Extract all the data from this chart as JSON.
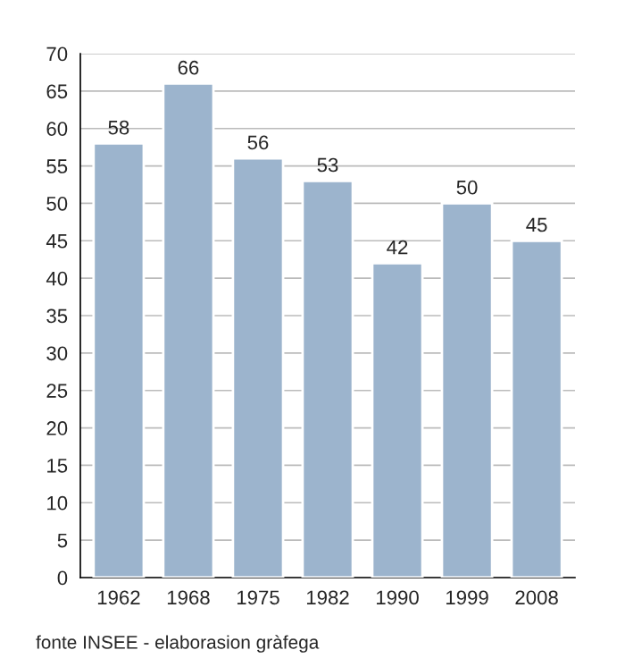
{
  "chart_data": {
    "type": "bar",
    "categories": [
      "1962",
      "1968",
      "1975",
      "1982",
      "1990",
      "1999",
      "2008"
    ],
    "values": [
      58,
      66,
      56,
      53,
      42,
      50,
      45
    ],
    "color": "#9cb4cd",
    "ylim": [
      0,
      70
    ],
    "yticks": [
      0,
      5,
      10,
      15,
      20,
      25,
      30,
      35,
      40,
      45,
      50,
      55,
      60,
      65,
      70
    ],
    "grid": "y",
    "data_labels": true,
    "annotations": [
      "fonte INSEE - elaborasion gràfega"
    ]
  }
}
